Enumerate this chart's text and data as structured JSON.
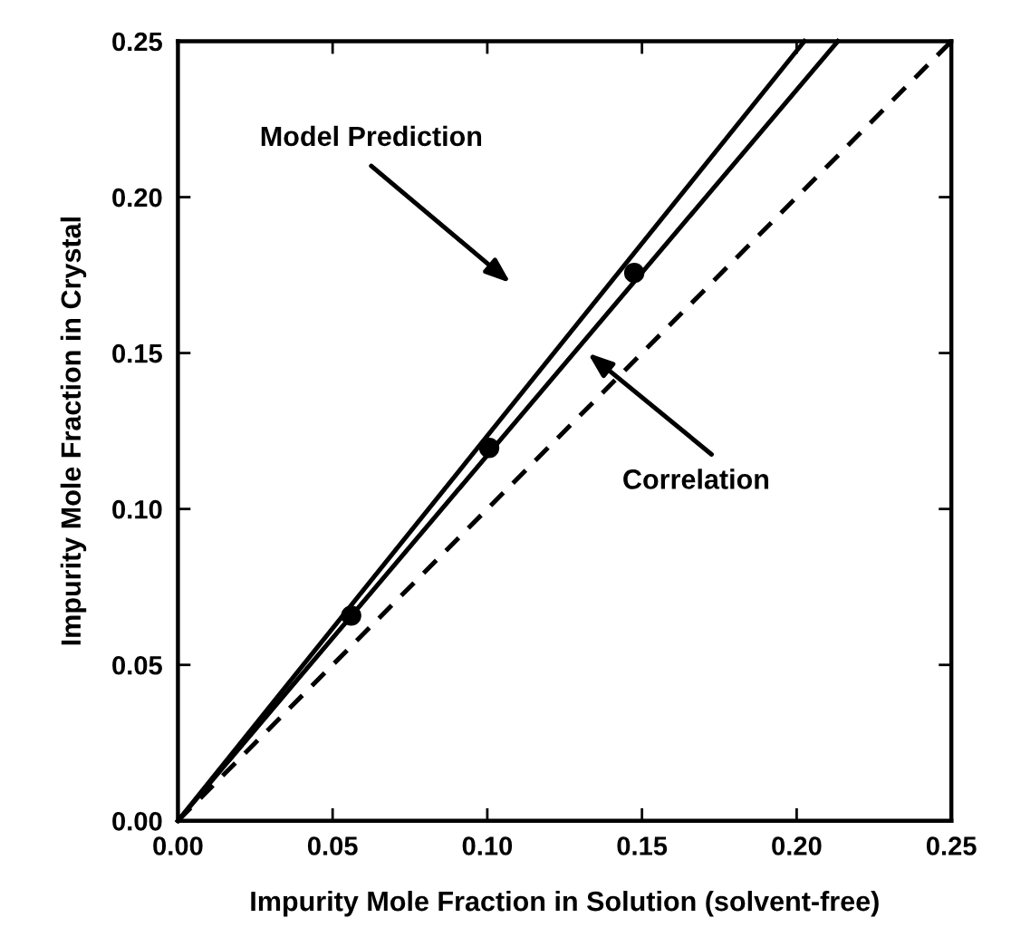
{
  "chart_data": {
    "type": "line",
    "xlabel": "Impurity Mole Fraction in Solution (solvent-free)",
    "ylabel": "Impurity Mole Fraction in Crystal",
    "series": [
      {
        "color": "#000000",
        "x": [
          0,
          0.2025
        ],
        "values": [
          0,
          0.25
        ],
        "line_style": "solid"
      },
      {
        "color": "#000000",
        "x": [
          0,
          0.2133
        ],
        "values": [
          0,
          0.25
        ],
        "line_style": "solid"
      },
      {
        "color": "#000000",
        "x": [
          0,
          0.25
        ],
        "values": [
          0,
          0.25
        ],
        "line_style": "dashed"
      },
      {
        "type": "scatter",
        "color": "#000000",
        "x": [
          0.056,
          0.1006,
          0.1475
        ],
        "values": [
          0.0658,
          0.1196,
          0.1757
        ],
        "marker": "circle"
      }
    ],
    "annotations": [
      "Model Prediction",
      "Correlation"
    ],
    "xlim": [
      0,
      0.25
    ],
    "ylim": [
      0,
      0.25
    ],
    "xticks": [
      {
        "value": 0,
        "label": "0.00"
      },
      0.05,
      {
        "value": 0.1,
        "label": "0.10"
      },
      0.15,
      {
        "value": 0.2,
        "label": "0.20"
      },
      0.25
    ],
    "yticks": [
      {
        "value": 0,
        "label": "0.00"
      },
      0.05,
      {
        "value": 0.1,
        "label": "0.10"
      },
      0.15,
      {
        "value": 0.2,
        "label": "0.20"
      },
      0.25
    ],
    "grid": false
  }
}
